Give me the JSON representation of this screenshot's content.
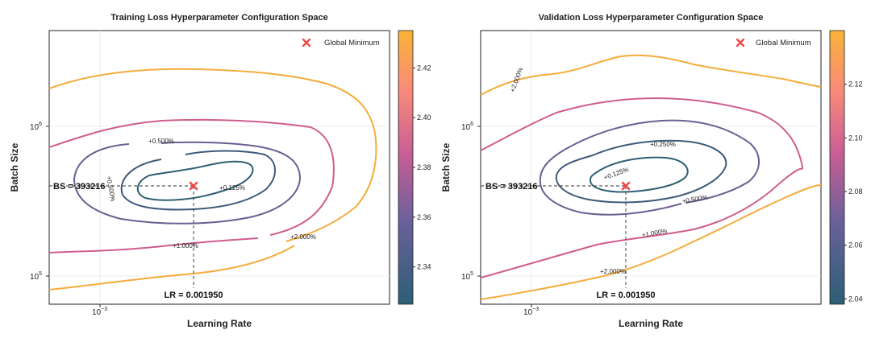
{
  "chart_data": [
    {
      "type": "contour",
      "title": "Training Loss Hyperparameter Configuration Space",
      "xlabel": "Learning Rate",
      "ylabel": "Batch Size",
      "x_scale": "log",
      "y_scale": "log",
      "xlim": [
        0.0006,
        0.006
      ],
      "ylim": [
        70000,
        4500000
      ],
      "x_tick_labels": [
        "10",
        "−3"
      ],
      "y_tick_labels": [
        {
          "base": "10",
          "exp": "6"
        },
        {
          "base": "10",
          "exp": "5"
        }
      ],
      "colorbar": {
        "min": 2.325,
        "max": 2.435,
        "ticks": [
          "2.34",
          "2.36",
          "2.38",
          "2.40",
          "2.42"
        ]
      },
      "contours": [
        {
          "level_label": "+0.125%",
          "color": "#2f5f73"
        },
        {
          "level_label": "+0.500%",
          "color": "#6c5e92"
        },
        {
          "level_label": "+1.000%",
          "color": "#cf5d8d"
        },
        {
          "level_label": "+2.000%",
          "color": "#f5ac3c"
        }
      ],
      "minimum": {
        "lr": 0.00195,
        "bs": 393216
      },
      "annotations": {
        "bs": "BS = 393216",
        "lr": "LR = 0.001950"
      },
      "legend": {
        "label": "Global Minimum",
        "position": "top-right"
      }
    },
    {
      "type": "contour",
      "title": "Validation Loss Hyperparameter Configuration Space",
      "xlabel": "Learning Rate",
      "ylabel": "Batch Size",
      "x_scale": "log",
      "y_scale": "log",
      "xlim": [
        0.0006,
        0.006
      ],
      "ylim": [
        70000,
        4500000
      ],
      "x_tick_labels": [
        "10",
        "−3"
      ],
      "y_tick_labels": [
        {
          "base": "10",
          "exp": "6"
        },
        {
          "base": "10",
          "exp": "5"
        }
      ],
      "colorbar": {
        "min": 2.038,
        "max": 2.14,
        "ticks": [
          "2.04",
          "2.06",
          "2.08",
          "2.10",
          "2.12"
        ]
      },
      "contours": [
        {
          "level_label": "+0.125%",
          "color": "#2f5f73"
        },
        {
          "level_label": "+0.250%",
          "color": "#3d5a7a"
        },
        {
          "level_label": "+0.500%",
          "color": "#6c5e92"
        },
        {
          "level_label": "+1.000%",
          "color": "#cf5d8d"
        },
        {
          "level_label": "+2.000%",
          "color": "#f5ac3c"
        }
      ],
      "minimum": {
        "lr": 0.00195,
        "bs": 393216
      },
      "annotations": {
        "bs": "BS = 393216",
        "lr": "LR = 0.001950"
      },
      "legend": {
        "label": "Global Minimum",
        "position": "top-right"
      }
    }
  ]
}
